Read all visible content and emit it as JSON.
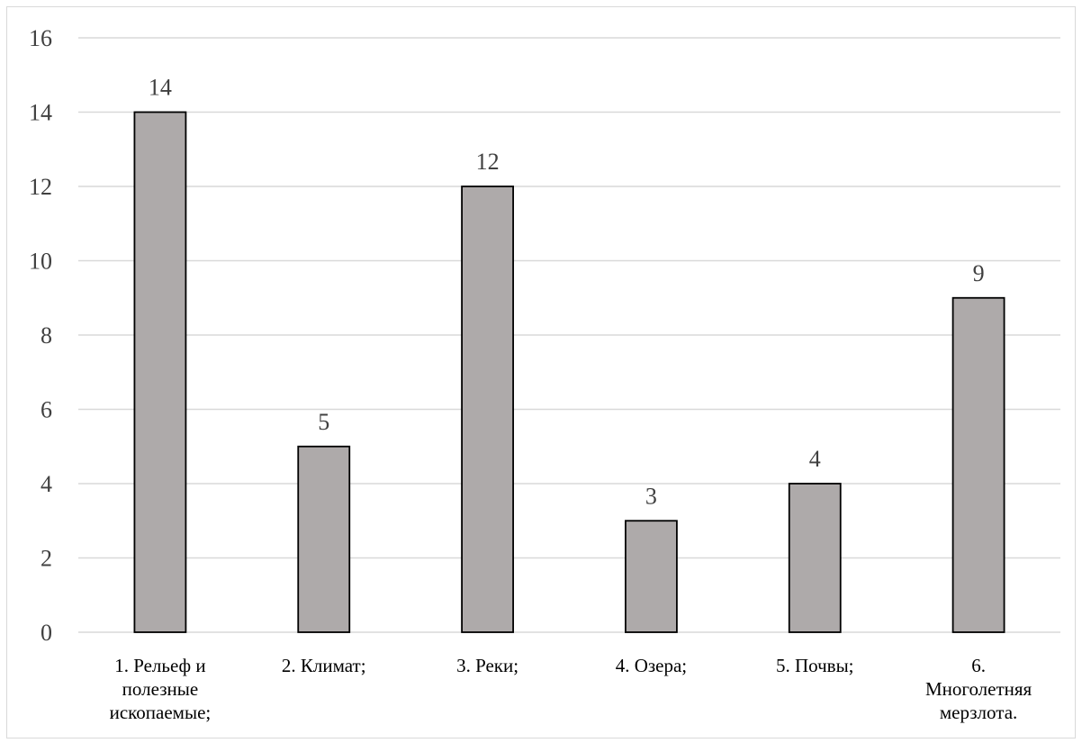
{
  "chart_data": {
    "type": "bar",
    "categories": [
      [
        "1. Рельеф и",
        "полезные",
        "ископаемые;"
      ],
      [
        "2. Климат;"
      ],
      [
        "3. Реки;"
      ],
      [
        "4. Озера;"
      ],
      [
        "5. Почвы;"
      ],
      [
        "6.",
        "Многолетняя",
        "мерзлота."
      ]
    ],
    "values": [
      14,
      5,
      12,
      3,
      4,
      9
    ],
    "title": "",
    "xlabel": "",
    "ylabel": "",
    "ylim": [
      0,
      16
    ],
    "y_ticks": [
      "0",
      "2",
      "4",
      "6",
      "8",
      "10",
      "12",
      "14",
      "16"
    ],
    "data_labels": [
      "14",
      "5",
      "12",
      "3",
      "4",
      "9"
    ],
    "grid": true,
    "legend": "none",
    "colors": {
      "bar_fill": "#aeaaaa",
      "bar_stroke": "#000000",
      "grid": "#d9d9d9",
      "tick_text": "#404040",
      "category_text": "#000000"
    }
  }
}
